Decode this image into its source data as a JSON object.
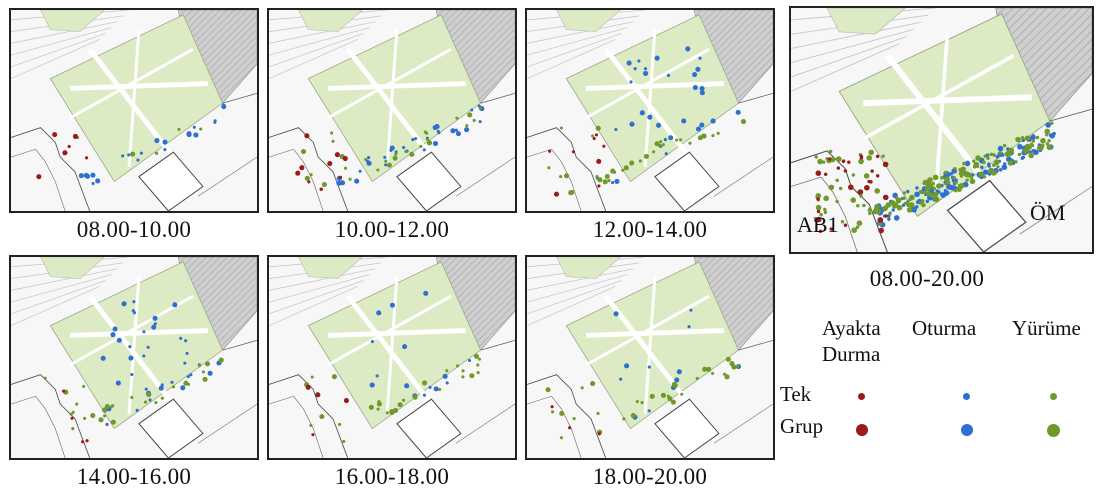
{
  "maps": [
    {
      "caption": "08.00-10.00"
    },
    {
      "caption": "10.00-12.00"
    },
    {
      "caption": "12.00-14.00"
    },
    {
      "caption": "14.00-16.00"
    },
    {
      "caption": "16.00-18.00"
    },
    {
      "caption": "18.00-20.00"
    }
  ],
  "summary_map": {
    "caption": "08.00-20.00",
    "label_left": "AB1",
    "label_right": "ÖM"
  },
  "legend": {
    "col_standing_line1": "Ayakta",
    "col_standing_line2": "Durma",
    "col_sitting": "Oturma",
    "col_walking": "Yürüme",
    "row_single": "Tek",
    "row_group": "Grup"
  },
  "colors": {
    "standing": "#9b1b1b",
    "sitting": "#2f6fd0",
    "walking": "#6f9a2a",
    "lawn": "#dcebc4",
    "hatched_area": "#cfcfcf"
  }
}
